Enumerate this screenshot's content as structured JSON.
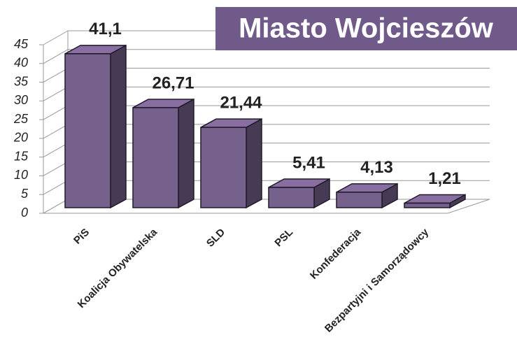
{
  "chart_data": {
    "type": "bar3d",
    "title": "Miasto Wojcieszów",
    "categories": [
      "PiS",
      "Koalicja Obywatelska",
      "SLD",
      "PSL",
      "Konfederacja",
      "Bezpartyjni i Samorządowcy"
    ],
    "values": [
      41.1,
      26.71,
      21.44,
      5.41,
      4.13,
      1.21
    ],
    "value_labels": [
      "41,1",
      "26,71",
      "21,44",
      "5,41",
      "4,13",
      "1,21"
    ],
    "color": "#76608c",
    "ylim": [
      0,
      45
    ],
    "yticks": [
      0,
      5,
      10,
      15,
      20,
      25,
      30,
      35,
      40,
      45
    ],
    "grid": true
  }
}
